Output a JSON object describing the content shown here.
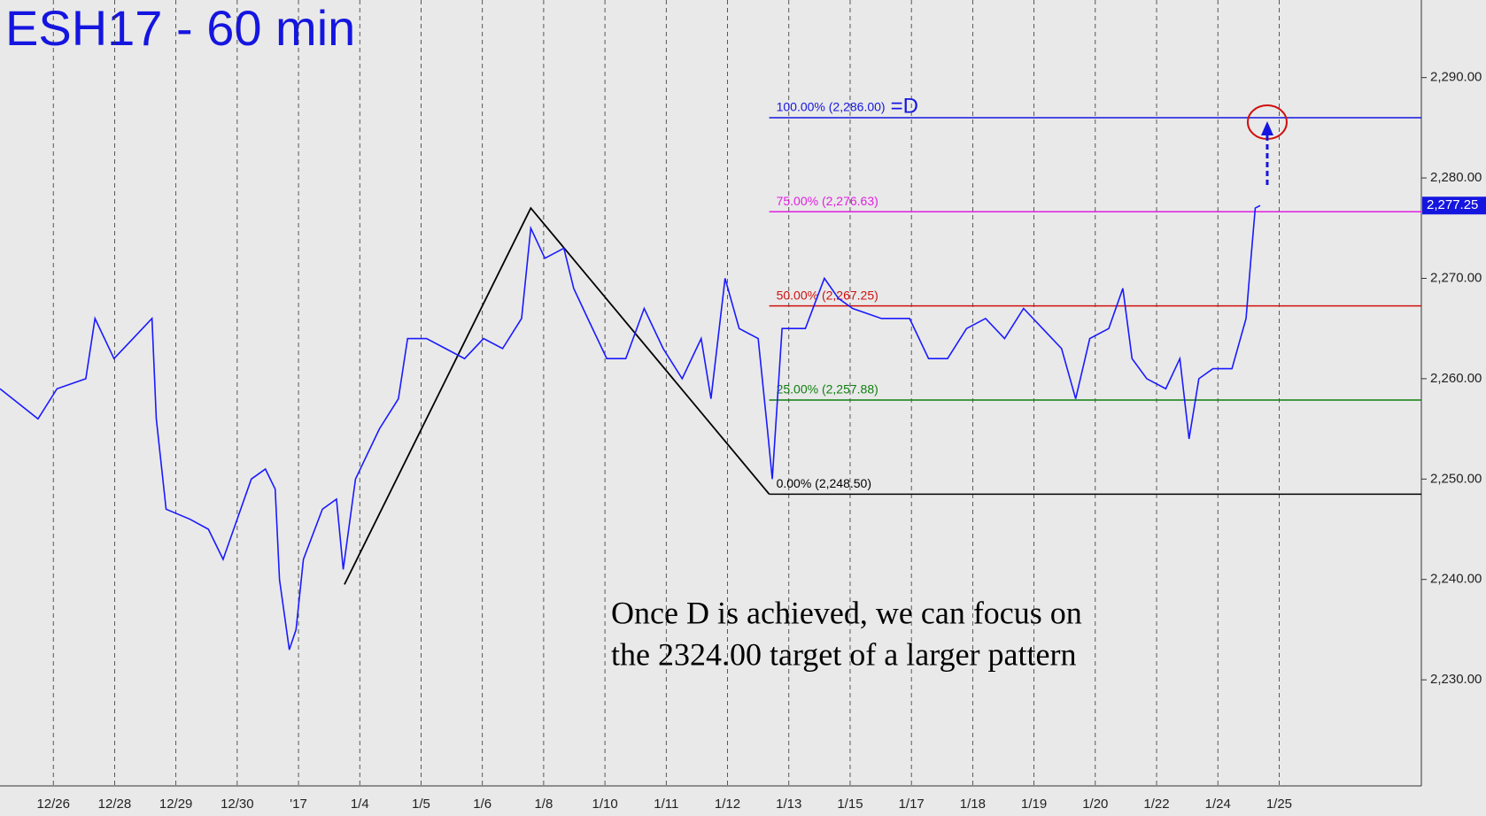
{
  "chart_data": {
    "type": "line",
    "title": "ESH17 - 60 min",
    "annotation": [
      "Once D is achieved, we can focus on",
      "the 2324.00 target of a larger pattern"
    ],
    "color": "#1a1aff",
    "x": [
      -0.87,
      -0.25,
      0.06,
      0.53,
      0.68,
      0.99,
      1.3,
      1.61,
      1.68,
      1.84,
      2.23,
      2.53,
      2.77,
      3.0,
      3.23,
      3.46,
      3.62,
      3.69,
      3.85,
      3.96,
      4.08,
      4.39,
      4.62,
      4.73,
      4.93,
      5.32,
      5.63,
      5.78,
      6.09,
      6.4,
      6.71,
      7.02,
      7.33,
      7.64,
      7.79,
      8.02,
      8.33,
      8.49,
      8.72,
      9.03,
      9.34,
      9.64,
      9.95,
      10.26,
      10.57,
      10.73,
      10.96,
      11.19,
      11.5,
      11.65,
      11.73,
      11.89,
      12.27,
      12.58,
      12.81,
      13.04,
      13.51,
      13.97,
      14.28,
      14.59,
      14.9,
      15.21,
      15.52,
      15.83,
      16.14,
      16.45,
      16.68,
      16.91,
      17.22,
      17.45,
      17.6,
      17.84,
      18.15,
      18.38,
      18.53,
      18.69,
      18.92,
      19.23,
      19.46,
      19.54,
      19.61,
      19.69
    ],
    "values": [
      2259,
      2256,
      2259,
      2260,
      2266,
      2262,
      2264,
      2266,
      2256,
      2247,
      2246,
      2245,
      2242,
      2246,
      2250,
      2251,
      2249,
      2240,
      2233,
      2235,
      2242,
      2247,
      2248,
      2241,
      2250,
      2255,
      2258,
      2264,
      2264,
      2263,
      2262,
      2264,
      2263,
      2266,
      2275,
      2272,
      2273,
      2269,
      2266,
      2262,
      2262,
      2267,
      2263,
      2260,
      2264,
      2258,
      2270,
      2265,
      2264,
      2255,
      2250,
      2265,
      2265,
      2270,
      2268,
      2267,
      2266,
      2266,
      2262,
      2262,
      2265,
      2266,
      2264,
      2267,
      2265,
      2263,
      2258,
      2264,
      2265,
      2269,
      2262,
      2260,
      2259,
      2262,
      2254,
      2260,
      2261,
      2261,
      2266,
      2272,
      2277,
      2277.25
    ],
    "pattern": {
      "color": "#000000",
      "x": [
        4.75,
        7.79,
        11.68
      ],
      "values": [
        2239.5,
        2277,
        2248.5
      ]
    },
    "levels_start_x": 11.68,
    "levels": [
      {
        "value": 2286,
        "label": "100.00% (2,286.00)",
        "color": "#1515e0"
      },
      {
        "value": 2276.63,
        "label": "75.00% (2,276.63)",
        "color": "#e020e0"
      },
      {
        "value": 2267.25,
        "label": "50.00% (2,267.25)",
        "color": "#d01010"
      },
      {
        "value": 2257.88,
        "label": "25.00% (2,257.88)",
        "color": "#108010"
      },
      {
        "value": 2248.5,
        "label": "0.00% (2,248.50)",
        "color": "#000000"
      }
    ],
    "target_label": "=D",
    "last_price": {
      "value": 2277.25,
      "label": "2,277.25"
    },
    "xlim": [
      -0.87,
      22.32
    ],
    "xticks": [
      {
        "value": 0,
        "label": "12/26"
      },
      {
        "value": 1,
        "label": "12/28"
      },
      {
        "value": 2,
        "label": "12/29"
      },
      {
        "value": 3,
        "label": "12/30"
      },
      {
        "value": 4,
        "label": "'17"
      },
      {
        "value": 5,
        "label": "1/4"
      },
      {
        "value": 6,
        "label": "1/5"
      },
      {
        "value": 7,
        "label": "1/6"
      },
      {
        "value": 8,
        "label": "1/8"
      },
      {
        "value": 9,
        "label": "1/10"
      },
      {
        "value": 10,
        "label": "1/11"
      },
      {
        "value": 11,
        "label": "1/12"
      },
      {
        "value": 12,
        "label": "1/13"
      },
      {
        "value": 13,
        "label": "1/15"
      },
      {
        "value": 14,
        "label": "1/17"
      },
      {
        "value": 15,
        "label": "1/18"
      },
      {
        "value": 16,
        "label": "1/19"
      },
      {
        "value": 17,
        "label": "1/20"
      },
      {
        "value": 18,
        "label": "1/22"
      },
      {
        "value": 19,
        "label": "1/24"
      },
      {
        "value": 20,
        "label": "1/25"
      }
    ],
    "ylim": [
      2219.43,
      2297.73
    ],
    "yticks": [
      {
        "value": 2230,
        "label": "2,230.00"
      },
      {
        "value": 2240,
        "label": "2,240.00"
      },
      {
        "value": 2250,
        "label": "2,250.00"
      },
      {
        "value": 2260,
        "label": "2,260.00"
      },
      {
        "value": 2270,
        "label": "2,270.00"
      },
      {
        "value": 2280,
        "label": "2,280.00"
      },
      {
        "value": 2290,
        "label": "2,290.00"
      }
    ],
    "grid": true
  }
}
